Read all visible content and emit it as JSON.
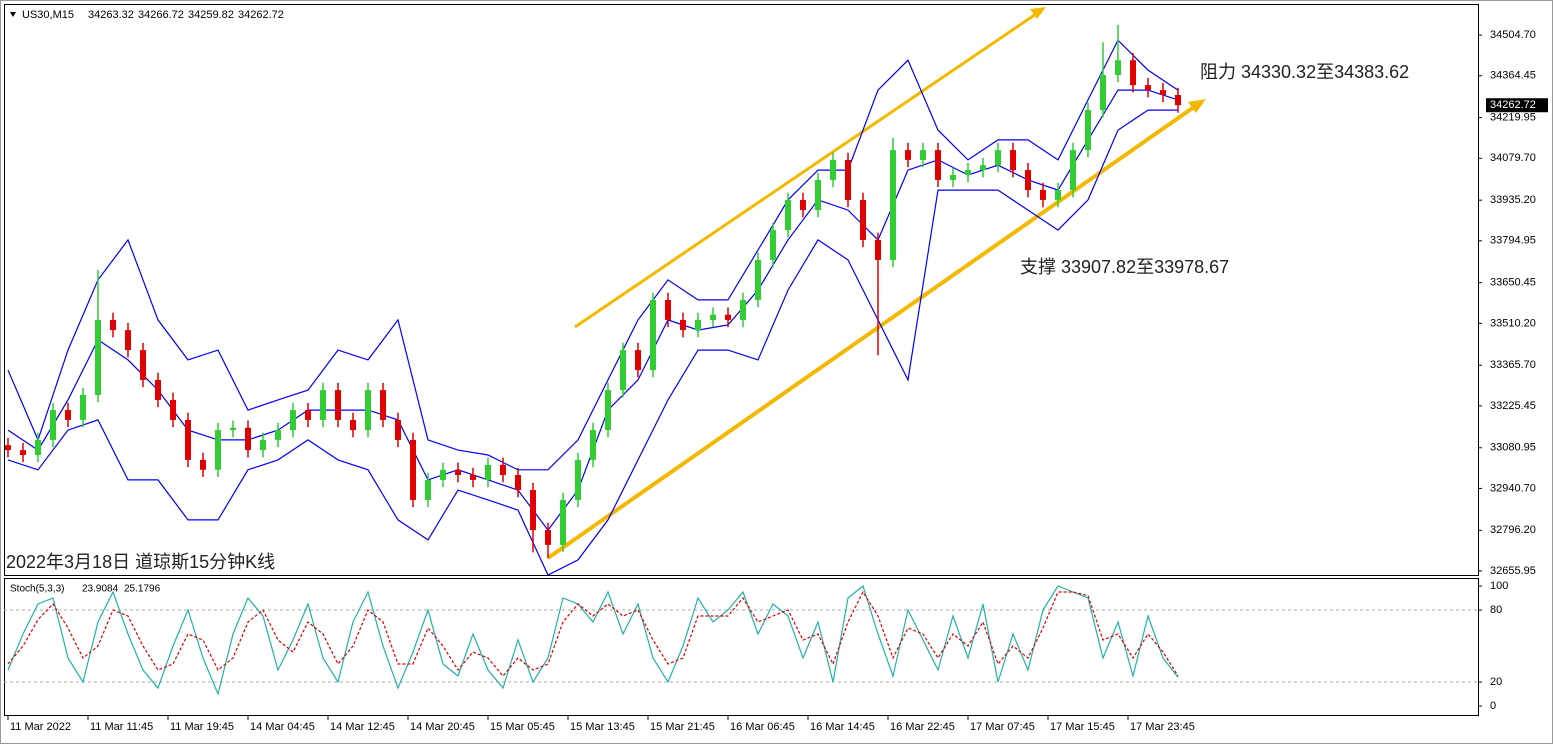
{
  "chart_data": [
    {
      "type": "candlestick",
      "symbol": "US30,M15",
      "header_ohlc": [
        34263.32,
        34266.72,
        34259.82,
        34262.72
      ],
      "annotations": [
        "阻力 34330.32至34383.62",
        "支撑 33907.82至33978.67",
        "2022年3月18日 道琼斯15分钟K线"
      ],
      "up_color": "#32cd32",
      "down_color": "#e00000",
      "band_color": "#0000ff",
      "xlim": [
        -1.6,
        588
      ],
      "ylim": [
        32642,
        34612
      ],
      "xticks": [
        {
          "value": 0,
          "label": "11 Mar 2022"
        },
        {
          "value": 32,
          "label": "11 Mar 11:45"
        },
        {
          "value": 64,
          "label": "11 Mar 19:45"
        },
        {
          "value": 96,
          "label": "14 Mar 04:45"
        },
        {
          "value": 128,
          "label": "14 Mar 12:45"
        },
        {
          "value": 160,
          "label": "14 Mar 20:45"
        },
        {
          "value": 192,
          "label": "15 Mar 05:45"
        },
        {
          "value": 224,
          "label": "15 Mar 13:45"
        },
        {
          "value": 256,
          "label": "15 Mar 21:45"
        },
        {
          "value": 288,
          "label": "16 Mar 06:45"
        },
        {
          "value": 320,
          "label": "16 Mar 14:45"
        },
        {
          "value": 352,
          "label": "16 Mar 22:45"
        },
        {
          "value": 384,
          "label": "17 Mar 07:45"
        },
        {
          "value": 416,
          "label": "17 Mar 15:45"
        },
        {
          "value": 448,
          "label": "17 Mar 23:45"
        }
      ],
      "yticks": [
        {
          "value": 34504.7,
          "label": "34504.70"
        },
        34364.45,
        34219.95,
        {
          "value": 34079.7,
          "label": "34079.70"
        },
        {
          "value": 33935.2,
          "label": "33935.20"
        },
        33794.95,
        33650.45,
        {
          "value": 33510.2,
          "label": "33510.20"
        },
        {
          "value": 33365.7,
          "label": "33365.70"
        },
        33225.45,
        33080.95,
        {
          "value": 32940.7,
          "label": "32940.70"
        },
        {
          "value": 32796.2,
          "label": "32796.20"
        },
        32655.95
      ],
      "x": [
        0,
        6,
        12,
        18,
        24,
        30,
        36,
        42,
        48,
        54,
        60,
        66,
        72,
        78,
        84,
        90,
        96,
        102,
        108,
        114,
        120,
        126,
        132,
        138,
        144,
        150,
        156,
        162,
        168,
        174,
        180,
        186,
        192,
        198,
        204,
        210,
        216,
        222,
        228,
        234,
        240,
        246,
        252,
        258,
        264,
        270,
        276,
        282,
        288,
        294,
        300,
        306,
        312,
        318,
        324,
        330,
        336,
        342,
        348,
        354,
        360,
        366,
        372,
        378,
        384,
        390,
        396,
        402,
        408,
        414,
        420,
        426,
        432,
        438,
        444,
        450,
        456,
        462,
        468
      ],
      "open": [
        33090,
        33073,
        33056,
        33108,
        33211,
        33177,
        33263,
        33522,
        33487,
        33418,
        33315,
        33246,
        33177,
        33039,
        33005,
        33142,
        33150,
        33073,
        33108,
        33142,
        33211,
        33177,
        33280,
        33177,
        33142,
        33280,
        33177,
        33108,
        32901,
        32970,
        33005,
        32987,
        32970,
        33022,
        32987,
        32935,
        32797,
        32746,
        32901,
        33039,
        33142,
        33280,
        33418,
        33349,
        33591,
        33522,
        33487,
        33522,
        33540,
        33522,
        33591,
        33729,
        33832,
        33936,
        33901,
        34005,
        34074,
        33936,
        33798,
        33729,
        34108,
        34074,
        34108,
        34005,
        34022,
        34039,
        34056,
        34108,
        34039,
        33970,
        33936,
        33970,
        34108,
        34246,
        34367,
        34418,
        34332,
        34315,
        34298
      ],
      "high": [
        33115,
        33098,
        33133,
        33236,
        33236,
        33288,
        33694,
        33547,
        33512,
        33443,
        33340,
        33271,
        33202,
        33064,
        33167,
        33175,
        33175,
        33133,
        33167,
        33236,
        33236,
        33305,
        33305,
        33202,
        33305,
        33305,
        33202,
        33133,
        32995,
        33030,
        33030,
        33012,
        33047,
        33047,
        33012,
        32960,
        32822,
        32926,
        33064,
        33167,
        33305,
        33443,
        33443,
        33616,
        33616,
        33547,
        33547,
        33565,
        33565,
        33616,
        33754,
        33857,
        33961,
        33961,
        34030,
        34099,
        34099,
        33961,
        33823,
        34150,
        34133,
        34133,
        34133,
        34047,
        34064,
        34081,
        34133,
        34133,
        34064,
        33995,
        33995,
        34133,
        34271,
        34480,
        34540,
        34443,
        34357,
        34340,
        34323
      ],
      "low": [
        33048,
        33031,
        33031,
        33083,
        33152,
        33152,
        33238,
        33462,
        33393,
        33290,
        33221,
        33152,
        33014,
        32980,
        32980,
        33117,
        33048,
        33048,
        33083,
        33117,
        33152,
        33152,
        33152,
        33117,
        33117,
        33152,
        33083,
        32876,
        32876,
        32945,
        32962,
        32945,
        32945,
        32962,
        32910,
        32720,
        32700,
        32721,
        32876,
        33014,
        33117,
        33255,
        33324,
        33324,
        33497,
        33462,
        33462,
        33497,
        33497,
        33497,
        33566,
        33704,
        33807,
        33876,
        33876,
        33980,
        33911,
        33773,
        33400,
        33704,
        34049,
        34049,
        33980,
        33980,
        33997,
        34014,
        34031,
        34014,
        33945,
        33911,
        33911,
        33945,
        34083,
        34221,
        34342,
        34307,
        34290,
        34273,
        34237
      ],
      "close": [
        33073,
        33056,
        33108,
        33211,
        33177,
        33263,
        33522,
        33487,
        33418,
        33315,
        33246,
        33177,
        33039,
        33005,
        33142,
        33150,
        33073,
        33108,
        33142,
        33211,
        33177,
        33280,
        33177,
        33142,
        33280,
        33177,
        33108,
        32901,
        32970,
        33005,
        32987,
        32970,
        33022,
        32987,
        32935,
        32797,
        32746,
        32901,
        33039,
        33142,
        33280,
        33418,
        33349,
        33591,
        33522,
        33487,
        33522,
        33540,
        33522,
        33591,
        33729,
        33832,
        33936,
        33901,
        34005,
        34074,
        33936,
        33798,
        33729,
        34108,
        34074,
        34108,
        34005,
        34022,
        34039,
        34056,
        34108,
        34039,
        33970,
        33936,
        33970,
        34108,
        34246,
        34367,
        34418,
        34332,
        34315,
        34298,
        34262.72
      ],
      "bands": {
        "x": [
          0,
          12,
          24,
          36,
          48,
          60,
          72,
          84,
          96,
          108,
          120,
          132,
          144,
          156,
          168,
          180,
          192,
          204,
          216,
          228,
          240,
          252,
          264,
          276,
          288,
          300,
          312,
          324,
          336,
          348,
          360,
          372,
          384,
          396,
          408,
          420,
          432,
          444,
          456,
          468
        ],
        "upper": [
          33349,
          33108,
          33418,
          33660,
          33798,
          33522,
          33384,
          33418,
          33211,
          33246,
          33280,
          33418,
          33384,
          33522,
          33108,
          33073,
          33056,
          33005,
          33005,
          33108,
          33315,
          33522,
          33660,
          33591,
          33591,
          33763,
          33936,
          34039,
          34039,
          34315,
          34418,
          34177,
          34074,
          34143,
          34143,
          34074,
          34281,
          34487,
          34384,
          34315
        ],
        "middle": [
          33142,
          33073,
          33246,
          33453,
          33384,
          33280,
          33142,
          33108,
          33108,
          33142,
          33211,
          33211,
          33211,
          33177,
          32970,
          33005,
          32970,
          32935,
          32797,
          32935,
          33211,
          33315,
          33522,
          33487,
          33505,
          33625,
          33798,
          33936,
          33901,
          33798,
          34039,
          34074,
          34022,
          34056,
          34005,
          33970,
          34143,
          34315,
          34315,
          34281
        ],
        "lower": [
          33039,
          33005,
          33142,
          33177,
          32970,
          32970,
          32832,
          32832,
          33005,
          33039,
          33108,
          33039,
          33005,
          32832,
          32763,
          32935,
          32901,
          32866,
          32642,
          32694,
          32832,
          33039,
          33246,
          33418,
          33418,
          33384,
          33625,
          33798,
          33729,
          33522,
          33315,
          33970,
          33970,
          33970,
          33901,
          33832,
          33936,
          34177,
          34246,
          34246
        ]
      }
    },
    {
      "type": "stochastic",
      "title": "Stoch(5,3,3)",
      "main_color": "#20b2aa",
      "signal_color": "#e00000",
      "xlim": [
        -1.6,
        588
      ],
      "ylim": [
        -7.5,
        106.7
      ],
      "yticks": [
        100,
        80,
        20,
        0
      ],
      "levels": [
        80,
        20
      ],
      "x": [
        0,
        6,
        12,
        18,
        24,
        30,
        36,
        42,
        48,
        54,
        60,
        66,
        72,
        78,
        84,
        90,
        96,
        102,
        108,
        114,
        120,
        126,
        132,
        138,
        144,
        150,
        156,
        162,
        168,
        174,
        180,
        186,
        192,
        198,
        204,
        210,
        216,
        222,
        228,
        234,
        240,
        246,
        252,
        258,
        264,
        270,
        276,
        282,
        288,
        294,
        300,
        306,
        312,
        318,
        324,
        330,
        336,
        342,
        348,
        354,
        360,
        366,
        372,
        378,
        384,
        390,
        396,
        402,
        408,
        414,
        420,
        426,
        432,
        438,
        444,
        450,
        456,
        462,
        468
      ],
      "main": [
        30,
        60,
        85,
        90,
        40,
        20,
        70,
        95,
        60,
        30,
        15,
        50,
        80,
        40,
        10,
        60,
        90,
        75,
        30,
        55,
        85,
        40,
        20,
        70,
        95,
        50,
        15,
        45,
        80,
        35,
        25,
        60,
        30,
        15,
        55,
        20,
        40,
        90,
        85,
        70,
        95,
        60,
        85,
        40,
        20,
        50,
        90,
        70,
        80,
        95,
        60,
        85,
        75,
        40,
        70,
        20,
        90,
        100,
        60,
        25,
        80,
        55,
        30,
        75,
        40,
        85,
        20,
        60,
        30,
        80,
        100,
        95,
        90,
        40,
        70,
        25,
        75,
        40,
        23.9084
      ],
      "signal": [
        35,
        50,
        72,
        85,
        65,
        40,
        50,
        80,
        75,
        50,
        30,
        35,
        60,
        55,
        30,
        40,
        70,
        80,
        55,
        45,
        70,
        60,
        35,
        50,
        80,
        70,
        35,
        35,
        65,
        50,
        30,
        45,
        40,
        25,
        40,
        30,
        35,
        70,
        85,
        75,
        85,
        75,
        80,
        55,
        35,
        40,
        75,
        75,
        75,
        90,
        70,
        75,
        80,
        55,
        60,
        35,
        70,
        95,
        75,
        40,
        65,
        60,
        40,
        60,
        50,
        70,
        35,
        50,
        40,
        65,
        95,
        95,
        92,
        55,
        60,
        40,
        60,
        45,
        25.1796
      ]
    }
  ]
}
